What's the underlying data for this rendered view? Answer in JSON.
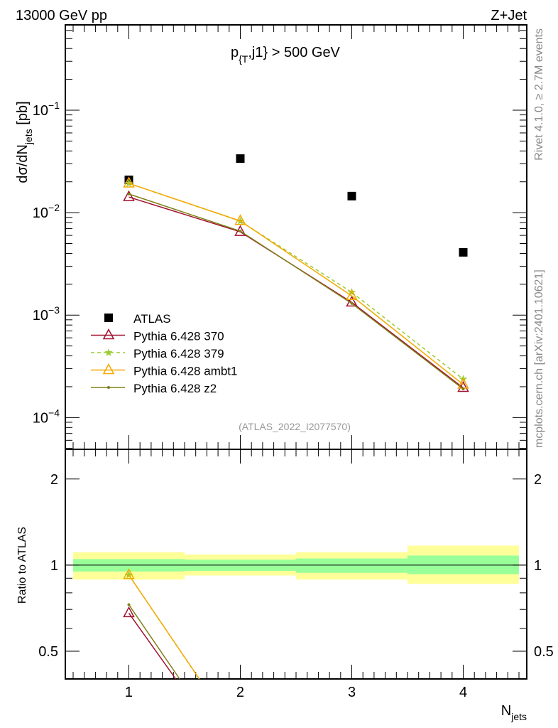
{
  "header": {
    "left": "13000 GeV pp",
    "right": "Z+Jet"
  },
  "side_text": {
    "top": "Rivet 4.1.0, ≥ 2.7M events",
    "bottom": "mcplots.cern.ch [arXiv:2401.10621]"
  },
  "chart_data": [
    {
      "type": "line",
      "title": "p_{T},j1} > 500 GeV",
      "title_main": "p",
      "title_sub": "{T",
      "title_rest": ",j1} > 500 GeV",
      "ylabel": "dσ/dN_jets [pb]",
      "ylabel_main": "dσ/dN",
      "ylabel_sub": "jets",
      "ylabel_rest": " [pb]",
      "yscale": "log",
      "ylim": [
        4.9e-05,
        0.68
      ],
      "xlim": [
        0.43,
        4.57
      ],
      "ytick_labels": [
        {
          "v": 0.1,
          "m": "10",
          "e": "−1"
        },
        {
          "v": 0.01,
          "m": "10",
          "e": "−2"
        },
        {
          "v": 0.001,
          "m": "10",
          "e": "−3"
        },
        {
          "v": 0.0001,
          "m": "10",
          "e": "−4"
        }
      ],
      "x": [
        1,
        2,
        3,
        4
      ],
      "annotation": "(ATLAS_2022_I2077570)",
      "legend_position": "bottom-left",
      "series": [
        {
          "name": "ATLAS",
          "color": "#000000",
          "marker": "square",
          "values": [
            0.0209,
            0.0337,
            0.0145,
            0.0041
          ]
        },
        {
          "name": "Pythia 6.428 370",
          "color": "#a0102e",
          "marker": "triangle",
          "dash": false,
          "values": [
            0.0142,
            0.0065,
            0.00133,
            0.000195
          ]
        },
        {
          "name": "Pythia 6.428 379",
          "color": "#9acd32",
          "marker": "star",
          "dash": true,
          "values": [
            0.0193,
            0.00826,
            0.00167,
            0.000237
          ]
        },
        {
          "name": "Pythia 6.428 ambt1",
          "color": "#f5a800",
          "marker": "triangle",
          "dash": false,
          "values": [
            0.0193,
            0.0083,
            0.00154,
            0.00021
          ]
        },
        {
          "name": "Pythia 6.428 z2",
          "color": "#808018",
          "marker": "dot",
          "dash": false,
          "values": [
            0.0152,
            0.0066,
            0.0013,
            0.00019
          ]
        }
      ]
    },
    {
      "type": "line",
      "ylabel": "Ratio to ATLAS",
      "xlabel": "N_jets",
      "xlabel_main": "N",
      "xlabel_sub": "jets",
      "yscale": "log",
      "ylim": [
        0.4,
        2.54
      ],
      "ytick_labels": [
        {
          "v": 2,
          "t": "2"
        },
        {
          "v": 1,
          "t": "1"
        },
        {
          "v": 0.5,
          "t": "0.5"
        }
      ],
      "xtick_labels": [
        "1",
        "2",
        "3",
        "4"
      ],
      "bands": {
        "bins": [
          [
            0.5,
            1.5
          ],
          [
            1.5,
            2.5
          ],
          [
            2.5,
            3.5
          ],
          [
            3.5,
            4.5
          ]
        ],
        "yellow": [
          [
            0.89,
            1.11
          ],
          [
            0.92,
            1.09
          ],
          [
            0.89,
            1.11
          ],
          [
            0.86,
            1.17
          ]
        ],
        "green": [
          [
            0.95,
            1.05
          ],
          [
            0.955,
            1.045
          ],
          [
            0.94,
            1.055
          ],
          [
            0.93,
            1.08
          ]
        ],
        "yellow_color": "#ffff99",
        "green_color": "#99ff99"
      }
    }
  ]
}
